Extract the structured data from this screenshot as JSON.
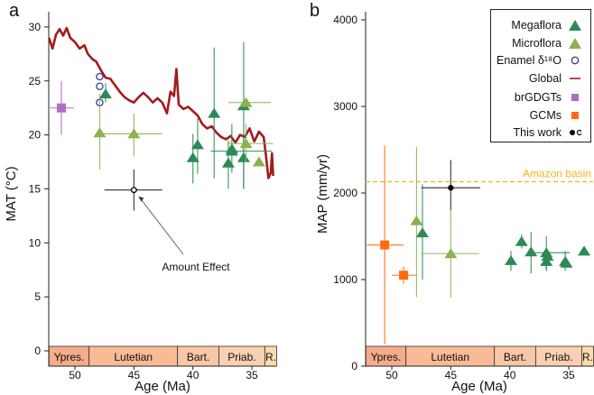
{
  "colors": {
    "megaflora": "#2b8a57",
    "microflora": "#8db152",
    "enamel": "#3b3b9c",
    "global": "#a31b1b",
    "brgdgt": "#b06cc0",
    "gcm": "#ff6a10",
    "amazon": "#f2b21e",
    "stages": [
      "#f5ac8a",
      "#f8bb96",
      "#fac7a6",
      "#fbd0b2",
      "#fddbae"
    ]
  },
  "legend": {
    "items": [
      {
        "label": "Megaflora",
        "marker": "triangle-icon",
        "color_key": "megaflora"
      },
      {
        "label": "Microflora",
        "marker": "triangle-icon",
        "color_key": "microflora"
      },
      {
        "label": "Enamel δ¹⁸O",
        "marker": "open-circle-icon",
        "color_key": "enamel"
      },
      {
        "label": "Global",
        "marker": "line-icon",
        "color_key": "global"
      },
      {
        "label": "brGDGTs",
        "marker": "square-icon",
        "color_key": "brgdgt"
      },
      {
        "label": "GCMs",
        "marker": "square-icon",
        "color_key": "gcm"
      },
      {
        "label": "This work",
        "marker": "dot-and-circle-icon",
        "color_key": "thiswork"
      }
    ]
  },
  "chart_data": [
    {
      "type": "scatter",
      "panel_label": "a",
      "xlabel": "Age (Ma)",
      "ylabel": "MAT (°C)",
      "xlim": [
        52.2,
        32.9
      ],
      "ylim": [
        0,
        31
      ],
      "xticks": [
        "50",
        "45",
        "40",
        "35"
      ],
      "yticks": [
        "0",
        "5",
        "10",
        "15",
        "20",
        "25",
        "30"
      ],
      "annotation": {
        "text": "Amount Effect",
        "points_to": [
          45,
          14.9
        ]
      },
      "stages": [
        {
          "name": "Ypres.",
          "from": 52.2,
          "to": 48.8
        },
        {
          "name": "Lutetian",
          "from": 48.8,
          "to": 41.3
        },
        {
          "name": "Bart.",
          "from": 41.3,
          "to": 37.8
        },
        {
          "name": "Priab.",
          "from": 37.8,
          "to": 33.9
        },
        {
          "name": "R.",
          "from": 33.9,
          "to": 32.9
        }
      ],
      "global_series": {
        "name": "Global",
        "points": [
          [
            52.2,
            29.0
          ],
          [
            51.9,
            28.0
          ],
          [
            51.6,
            29.3
          ],
          [
            51.3,
            29.8
          ],
          [
            51.0,
            29.2
          ],
          [
            50.7,
            29.9
          ],
          [
            50.4,
            29.0
          ],
          [
            50.0,
            28.6
          ],
          [
            49.6,
            28.0
          ],
          [
            49.2,
            28.3
          ],
          [
            48.9,
            27.5
          ],
          [
            48.5,
            27.0
          ],
          [
            48.2,
            26.8
          ],
          [
            47.8,
            26.0
          ],
          [
            47.4,
            25.3
          ],
          [
            47.0,
            25.2
          ],
          [
            46.6,
            24.6
          ],
          [
            46.2,
            24.0
          ],
          [
            45.8,
            23.5
          ],
          [
            45.4,
            23.2
          ],
          [
            45.0,
            23.0
          ],
          [
            44.6,
            23.5
          ],
          [
            44.2,
            23.9
          ],
          [
            43.8,
            23.5
          ],
          [
            43.4,
            23.0
          ],
          [
            43.0,
            23.4
          ],
          [
            42.6,
            23.0
          ],
          [
            42.2,
            22.0
          ],
          [
            41.9,
            24.0
          ],
          [
            41.6,
            23.6
          ],
          [
            41.4,
            26.1
          ],
          [
            41.2,
            22.8
          ],
          [
            40.8,
            22.4
          ],
          [
            40.4,
            22.6
          ],
          [
            40.0,
            22.2
          ],
          [
            39.6,
            21.8
          ],
          [
            39.2,
            21.0
          ],
          [
            38.8,
            20.6
          ],
          [
            38.4,
            20.8
          ],
          [
            38.0,
            20.2
          ],
          [
            37.6,
            19.8
          ],
          [
            37.2,
            19.6
          ],
          [
            36.8,
            19.9
          ],
          [
            36.4,
            19.3
          ],
          [
            36.0,
            20.0
          ],
          [
            35.6,
            19.8
          ],
          [
            35.2,
            20.6
          ],
          [
            34.8,
            19.4
          ],
          [
            34.4,
            20.3
          ],
          [
            34.0,
            19.8
          ],
          [
            33.8,
            18.0
          ],
          [
            33.6,
            16.0
          ],
          [
            33.4,
            16.5
          ],
          [
            33.3,
            18.3
          ],
          [
            33.2,
            16.2
          ]
        ]
      },
      "points": [
        {
          "series": "brGDGTs",
          "x": 51.15,
          "y": 22.5,
          "xerr": [
            52.1,
            50.1
          ],
          "yerr": [
            20.0,
            25.0
          ]
        },
        {
          "series": "Enamel",
          "x": 47.9,
          "y": 25.4
        },
        {
          "series": "Enamel",
          "x": 47.9,
          "y": 24.5
        },
        {
          "series": "Enamel",
          "x": 47.9,
          "y": 23.0
        },
        {
          "series": "Megaflora",
          "x": 47.4,
          "y": 23.8,
          "yerr": [
            23.0,
            24.8
          ]
        },
        {
          "series": "Microflora",
          "x": 47.9,
          "y": 20.2,
          "yerr": [
            16.8,
            23.8
          ]
        },
        {
          "series": "Microflora",
          "x": 45.0,
          "y": 20.1,
          "xerr": [
            47.9,
            42.6
          ],
          "yerr": [
            18.0,
            22.0
          ]
        },
        {
          "series": "This work",
          "x": 45.0,
          "y": 14.9,
          "xerr": [
            47.5,
            42.6
          ],
          "yerr": [
            13.0,
            16.8
          ],
          "open": true
        },
        {
          "series": "Megaflora",
          "x": 40.0,
          "y": 17.9,
          "yerr": [
            15.5,
            20.1
          ]
        },
        {
          "series": "Megaflora",
          "x": 39.6,
          "y": 19.1,
          "yerr": [
            16.4,
            21.5
          ]
        },
        {
          "series": "Megaflora",
          "x": 38.2,
          "y": 22.0,
          "yerr": [
            16.0,
            28.1
          ]
        },
        {
          "series": "Megaflora",
          "x": 37.0,
          "y": 17.4,
          "yerr": [
            15.0,
            19.5
          ]
        },
        {
          "series": "Megaflora",
          "x": 36.7,
          "y": 18.5,
          "xerr": [
            38.5,
            33.3
          ],
          "yerr": [
            16.5,
            21.0
          ]
        },
        {
          "series": "Megaflora",
          "x": 36.7,
          "y": 18.7
        },
        {
          "series": "Megaflora",
          "x": 35.7,
          "y": 22.7,
          "yerr": [
            15.0,
            28.6
          ]
        },
        {
          "series": "Megaflora",
          "x": 35.7,
          "y": 17.9,
          "yerr": [
            15.0,
            20.0
          ]
        },
        {
          "series": "Microflora",
          "x": 35.5,
          "y": 23.0,
          "xerr": [
            37.0,
            33.4
          ]
        },
        {
          "series": "Microflora",
          "x": 35.5,
          "y": 19.2,
          "xerr": [
            37.0,
            33.2
          ],
          "yerr": [
            17.5,
            21.0
          ]
        },
        {
          "series": "Microflora",
          "x": 34.4,
          "y": 17.5
        }
      ]
    },
    {
      "type": "scatter",
      "panel_label": "b",
      "xlabel": "Age (Ma)",
      "ylabel": "MAP (mm/yr)",
      "xlim": [
        52.2,
        32.9
      ],
      "ylim": [
        0,
        4100
      ],
      "xticks": [
        "50",
        "45",
        "40",
        "35"
      ],
      "yticks": [
        "0",
        "1000",
        "2000",
        "3000",
        "4000"
      ],
      "reference_line": {
        "label": "Amazon basin",
        "y": 2130
      },
      "stages": [
        {
          "name": "Ypres.",
          "from": 52.2,
          "to": 48.8
        },
        {
          "name": "Lutetian",
          "from": 48.8,
          "to": 41.3
        },
        {
          "name": "Bart.",
          "from": 41.3,
          "to": 37.8
        },
        {
          "name": "Priab.",
          "from": 37.8,
          "to": 33.9
        },
        {
          "name": "R.",
          "from": 33.9,
          "to": 32.9
        }
      ],
      "points": [
        {
          "series": "GCMs",
          "x": 50.6,
          "y": 1400,
          "xerr": [
            52.1,
            49.0
          ],
          "yerr": [
            250,
            2550
          ]
        },
        {
          "series": "GCMs",
          "x": 49.0,
          "y": 1050,
          "xerr": [
            50.0,
            47.9
          ],
          "yerr": [
            950,
            1150
          ]
        },
        {
          "series": "Microflora",
          "x": 47.9,
          "y": 1680,
          "yerr": [
            800,
            2530
          ]
        },
        {
          "series": "Megaflora",
          "x": 47.4,
          "y": 1540,
          "yerr": [
            1000,
            2100
          ]
        },
        {
          "series": "This work",
          "x": 45.0,
          "y": 2060,
          "xerr": [
            47.5,
            42.5
          ],
          "yerr": [
            1800,
            2380
          ],
          "open": false
        },
        {
          "series": "Microflora",
          "x": 45.0,
          "y": 1300,
          "xerr": [
            47.5,
            42.6
          ],
          "yerr": [
            790,
            1800
          ]
        },
        {
          "series": "Megaflora",
          "x": 39.9,
          "y": 1220,
          "yerr": [
            1100,
            1330
          ]
        },
        {
          "series": "Megaflora",
          "x": 39.0,
          "y": 1440,
          "yerr": [
            1360,
            1520
          ]
        },
        {
          "series": "Megaflora",
          "x": 38.2,
          "y": 1320,
          "yerr": [
            1070,
            1550
          ]
        },
        {
          "series": "Megaflora",
          "x": 36.9,
          "y": 1310,
          "xerr": [
            38.2,
            34.9
          ],
          "yerr": [
            1100,
            1500
          ]
        },
        {
          "series": "Megaflora",
          "x": 36.9,
          "y": 1210,
          "yerr": [
            1100,
            1330
          ]
        },
        {
          "series": "Megaflora",
          "x": 36.8,
          "y": 1270
        },
        {
          "series": "Megaflora",
          "x": 35.3,
          "y": 1210,
          "yerr": [
            1100,
            1330
          ]
        },
        {
          "series": "Megaflora",
          "x": 35.2,
          "y": 1190
        },
        {
          "series": "Megaflora",
          "x": 33.7,
          "y": 1330
        }
      ]
    }
  ]
}
